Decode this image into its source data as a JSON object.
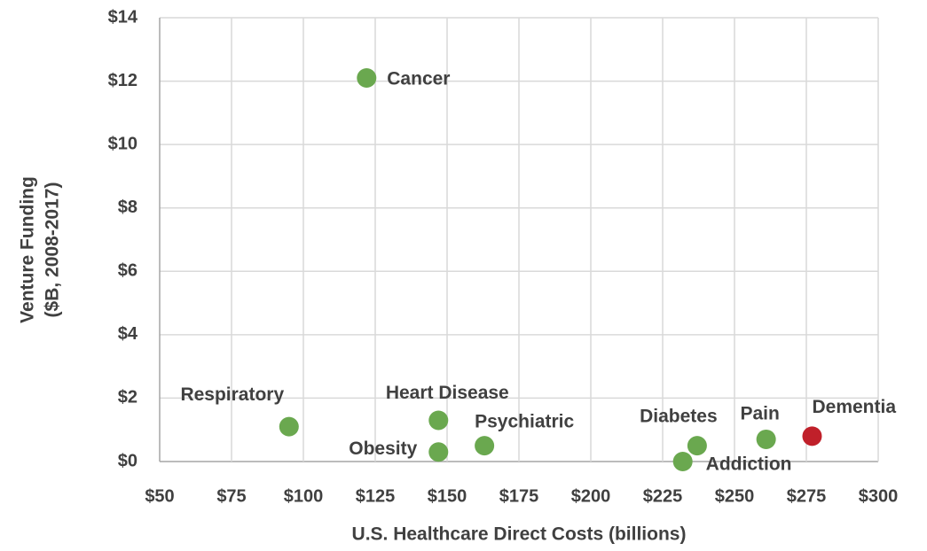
{
  "chart_data": {
    "type": "scatter",
    "xlabel": "U.S. Healthcare Direct Costs (billions)",
    "ylabel": [
      "Venture Funding",
      "($B, 2008-2017)"
    ],
    "xlim": [
      50,
      300
    ],
    "xticks": [
      {
        "value": 50,
        "label": "$50"
      },
      {
        "value": 75,
        "label": "$75"
      },
      {
        "value": 100,
        "label": "$100"
      },
      {
        "value": 125,
        "label": "$125"
      },
      {
        "value": 150,
        "label": "$150"
      },
      {
        "value": 175,
        "label": "$175"
      },
      {
        "value": 200,
        "label": "$200"
      },
      {
        "value": 225,
        "label": "$225"
      },
      {
        "value": 250,
        "label": "$250"
      },
      {
        "value": 275,
        "label": "$275"
      },
      {
        "value": 300,
        "label": "$300"
      }
    ],
    "ylim": [
      0,
      14
    ],
    "yticks": [
      {
        "value": 0,
        "label": "$0"
      },
      {
        "value": 2,
        "label": "$2"
      },
      {
        "value": 4,
        "label": "$4"
      },
      {
        "value": 6,
        "label": "$6"
      },
      {
        "value": 8,
        "label": "$8"
      },
      {
        "value": 10,
        "label": "$10"
      },
      {
        "value": 12,
        "label": "$12"
      },
      {
        "value": 14,
        "label": "$14"
      }
    ],
    "grid": true,
    "points": [
      {
        "name": "Cancer",
        "x": 122,
        "y": 12.1,
        "color": "#6aa84f"
      },
      {
        "name": "Respiratory",
        "x": 95,
        "y": 1.1,
        "color": "#6aa84f"
      },
      {
        "name": "Heart Disease",
        "x": 147,
        "y": 1.3,
        "color": "#6aa84f"
      },
      {
        "name": "Obesity",
        "x": 147,
        "y": 0.3,
        "color": "#6aa84f"
      },
      {
        "name": "Psychiatric",
        "x": 163,
        "y": 0.5,
        "color": "#6aa84f"
      },
      {
        "name": "Diabetes",
        "x": 237,
        "y": 0.5,
        "color": "#6aa84f"
      },
      {
        "name": "Addiction",
        "x": 232,
        "y": 0,
        "color": "#6aa84f"
      },
      {
        "name": "Pain",
        "x": 261,
        "y": 0.7,
        "color": "#6aa84f"
      },
      {
        "name": "Dementia",
        "x": 277,
        "y": 0.8,
        "color": "#c0202a"
      }
    ]
  }
}
